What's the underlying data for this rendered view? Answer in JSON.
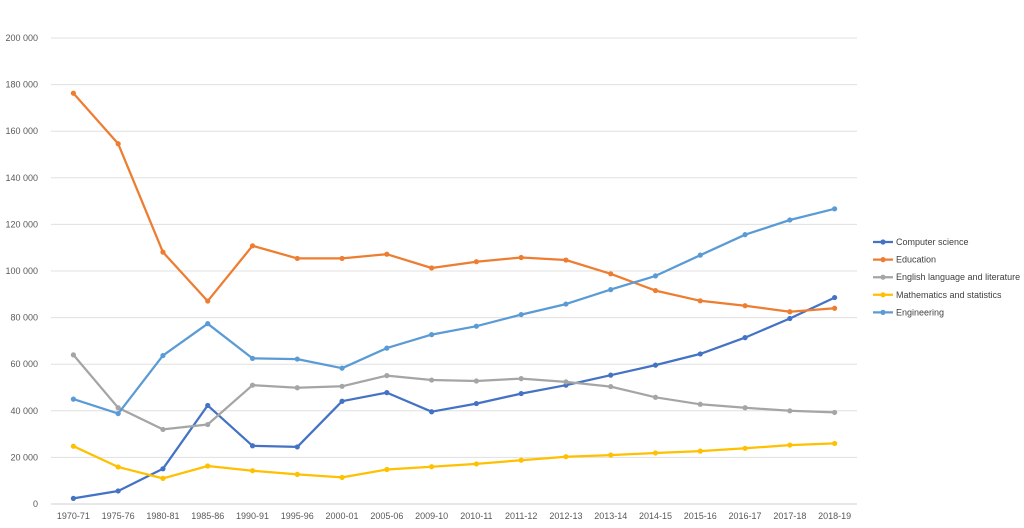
{
  "chart_data": {
    "type": "line",
    "title": "",
    "xlabel": "",
    "ylabel": "",
    "ylim": [
      0,
      200000
    ],
    "y_ticks": [
      0,
      20000,
      40000,
      60000,
      80000,
      100000,
      120000,
      140000,
      160000,
      180000,
      200000
    ],
    "y_tick_labels": [
      "0",
      "20 000",
      "40 000",
      "60 000",
      "80 000",
      "100 000",
      "120 000",
      "140 000",
      "160 000",
      "180 000",
      "200 000"
    ],
    "grid": "horizontal",
    "legend_position": "right",
    "categories": [
      "1970-71",
      "1975-76",
      "1980-81",
      "1985-86",
      "1990-91",
      "1995-96",
      "2000-01",
      "2005-06",
      "2009-10",
      "2010-11",
      "2011-12",
      "2012-13",
      "2013-14",
      "2014-15",
      "2015-16",
      "2016-17",
      "2017-18",
      "2018-19"
    ],
    "series": [
      {
        "name": "Computer science",
        "color": "#4472c4",
        "values": [
          2400,
          5600,
          15100,
          42300,
          25000,
          24500,
          44100,
          47800,
          39600,
          43100,
          47400,
          51000,
          55300,
          59600,
          64400,
          71400,
          79600,
          88600
        ]
      },
      {
        "name": "Education",
        "color": "#ed7d31",
        "values": [
          176300,
          154600,
          108100,
          87100,
          110800,
          105400,
          105400,
          107200,
          101300,
          104000,
          105800,
          104700,
          98800,
          91600,
          87200,
          85100,
          82500,
          84000
        ]
      },
      {
        "name": "English language and literature",
        "color": "#a5a5a5",
        "values": [
          64000,
          41300,
          32000,
          34100,
          51000,
          49900,
          50500,
          55100,
          53200,
          52800,
          53800,
          52400,
          50400,
          45800,
          42800,
          41300,
          40000,
          39300
        ]
      },
      {
        "name": "Mathematics and statistics",
        "color": "#ffc000",
        "values": [
          24800,
          15900,
          11000,
          16300,
          14300,
          12700,
          11400,
          14800,
          16000,
          17200,
          18800,
          20300,
          21000,
          21900,
          22700,
          23900,
          25300,
          26000
        ]
      },
      {
        "name": "Engineering",
        "color": "#5b9bd5",
        "values": [
          45000,
          38800,
          63700,
          77400,
          62500,
          62200,
          58300,
          66900,
          72700,
          76300,
          81300,
          85800,
          92000,
          97900,
          106800,
          115600,
          121900,
          126700
        ]
      }
    ]
  }
}
